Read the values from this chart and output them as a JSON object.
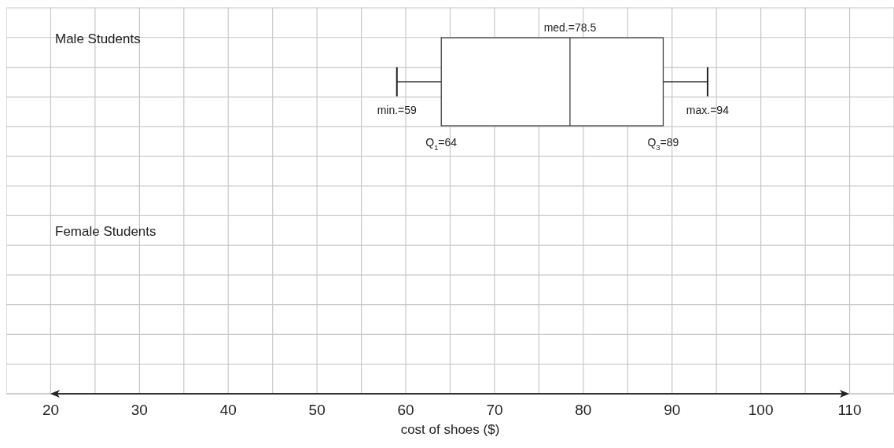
{
  "chart_data": {
    "type": "box",
    "categories": [
      "Male Students",
      "Female Students"
    ],
    "boxes": [
      {
        "low": 59,
        "q1": 64,
        "median": 78.5,
        "q3": 89,
        "high": 94
      },
      null
    ],
    "orientation": "horizontal",
    "xlabel": "cost of shoes ($)",
    "xlim": [
      15,
      115
    ],
    "xticks": [
      {
        "value": 15,
        "label": null
      },
      20,
      {
        "value": 25,
        "label": null
      },
      30,
      {
        "value": 35,
        "label": null
      },
      40,
      {
        "value": 45,
        "label": null
      },
      50,
      {
        "value": 55,
        "label": null
      },
      60,
      {
        "value": 65,
        "label": null
      },
      70,
      {
        "value": 75,
        "label": null
      },
      80,
      {
        "value": 85,
        "label": null
      },
      90,
      {
        "value": 95,
        "label": null
      },
      100,
      {
        "value": 105,
        "label": null
      },
      110,
      {
        "value": 115,
        "label": null
      }
    ],
    "annotations": [
      "med.=78.5",
      "min.=59",
      "max.=94",
      "Q$_{1}$=64",
      "Q$_{3}$=89"
    ],
    "grid": true
  }
}
